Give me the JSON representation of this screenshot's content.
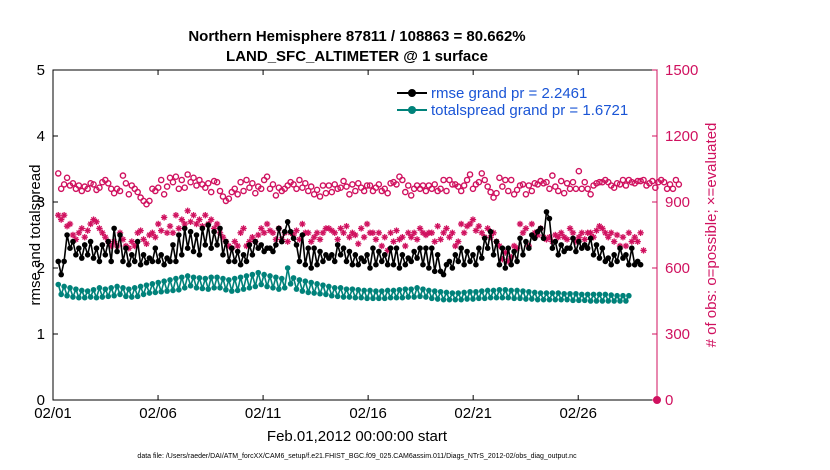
{
  "chart_data": {
    "type": "line",
    "title": "Northern Hemisphere 87811 / 108863 = 80.662%",
    "subtitle": "LAND_SFC_ALTIMETER @ 1 surface",
    "xlabel": "Feb.01,2012 00:00:00 start",
    "ylabel_left": "rmse and totalspread",
    "ylabel_right": "# of obs: o=possible; ×=evaluated",
    "footnote": "data file: /Users/raeder/DAI/ATM_forcXX/CAM6_setup/f.e21.FHIST_BGC.f09_025.CAM6assim.011/Diags_NTrS_2012-02/obs_diag_output.nc",
    "xlim": [
      0,
      28.75
    ],
    "ylim_left": [
      0,
      5
    ],
    "ylim_right": [
      0,
      1500
    ],
    "x_ticks": [
      0,
      5,
      10,
      15,
      20,
      25
    ],
    "x_tick_labels": [
      "02/01",
      "02/06",
      "02/11",
      "02/16",
      "02/21",
      "02/26"
    ],
    "y_left_ticks": [
      "0",
      "1",
      "2",
      "3",
      "4",
      "5"
    ],
    "y_right_ticks": [
      "0",
      "300",
      "600",
      "900",
      "1200",
      "1500"
    ],
    "grid": false,
    "legend_position": "top-right",
    "colors": {
      "rmse": "#000000",
      "totalspread": "#00827a",
      "obs": "#d0115f",
      "legend_text": "#1a55d6"
    },
    "series": [
      {
        "name": "rmse grand pr = 2.2461",
        "axis": "left",
        "values": [
          2.1,
          1.9,
          2.1,
          2.5,
          2.3,
          2.4,
          2.2,
          2.3,
          2.15,
          2.35,
          2.2,
          2.4,
          2.15,
          2.3,
          2.1,
          2.35,
          2.2,
          2.4,
          2.1,
          2.6,
          2.25,
          2.5,
          2.1,
          2.3,
          2.05,
          2.2,
          2.1,
          2.4,
          2.05,
          2.2,
          2.08,
          2.15,
          2.1,
          2.3,
          2.1,
          2.2,
          2.05,
          2.15,
          2.1,
          2.35,
          2.1,
          2.5,
          2.2,
          2.6,
          2.3,
          2.55,
          2.25,
          2.5,
          2.2,
          2.6,
          2.35,
          2.65,
          2.3,
          2.55,
          2.35,
          2.6,
          2.2,
          2.4,
          2.1,
          2.3,
          2.1,
          2.25,
          2.05,
          2.2,
          2.1,
          2.35,
          2.2,
          2.4,
          2.3,
          2.35,
          2.25,
          2.3,
          2.3,
          2.25,
          2.35,
          2.6,
          2.4,
          2.55,
          2.7,
          2.55,
          2.45,
          2.35,
          2.1,
          2.5,
          2.05,
          2.3,
          2.0,
          2.3,
          2.05,
          2.25,
          2.1,
          2.2,
          2.15,
          2.2,
          2.1,
          2.35,
          2.2,
          2.3,
          2.1,
          2.25,
          2.05,
          2.2,
          2.05,
          2.15,
          2.1,
          2.2,
          2.0,
          2.3,
          2.05,
          2.25,
          2.1,
          2.2,
          2.05,
          2.3,
          2.05,
          2.3,
          2.0,
          2.2,
          2.05,
          2.15,
          2.1,
          2.25,
          2.15,
          2.3,
          2.05,
          2.3,
          2.0,
          2.3,
          1.95,
          2.2,
          1.95,
          1.9,
          2.05,
          2.1,
          2.0,
          2.2,
          2.1,
          2.3,
          2.05,
          2.25,
          2.1,
          2.2,
          2.05,
          2.3,
          2.15,
          2.45,
          2.3,
          2.55,
          2.2,
          2.4,
          2.05,
          2.3,
          2.0,
          2.3,
          2.05,
          2.25,
          2.1,
          2.45,
          2.2,
          2.4,
          2.3,
          2.5,
          2.45,
          2.55,
          2.6,
          2.45,
          2.85,
          2.75,
          2.3,
          2.4,
          2.2,
          2.35,
          2.25,
          2.3,
          2.3,
          2.45,
          2.25,
          2.4,
          2.3,
          2.35,
          2.3,
          2.45,
          2.2,
          2.35,
          2.15,
          2.3,
          2.1,
          2.15,
          2.05,
          2.2,
          2.1,
          2.3,
          2.15,
          2.2,
          2.05,
          2.3,
          2.05,
          2.1,
          2.05
        ]
      },
      {
        "name": "totalspread grand pr = 1.6721",
        "axis": "left",
        "values": [
          1.75,
          1.6,
          1.72,
          1.58,
          1.7,
          1.56,
          1.68,
          1.55,
          1.66,
          1.55,
          1.65,
          1.56,
          1.67,
          1.55,
          1.7,
          1.56,
          1.68,
          1.57,
          1.7,
          1.58,
          1.72,
          1.6,
          1.7,
          1.57,
          1.68,
          1.56,
          1.7,
          1.57,
          1.72,
          1.6,
          1.74,
          1.62,
          1.76,
          1.63,
          1.78,
          1.64,
          1.8,
          1.65,
          1.82,
          1.66,
          1.84,
          1.67,
          1.86,
          1.7,
          1.88,
          1.73,
          1.86,
          1.7,
          1.85,
          1.69,
          1.84,
          1.68,
          1.86,
          1.7,
          1.86,
          1.7,
          1.84,
          1.67,
          1.82,
          1.65,
          1.84,
          1.66,
          1.86,
          1.68,
          1.88,
          1.7,
          1.9,
          1.72,
          1.93,
          1.75,
          1.9,
          1.72,
          1.88,
          1.7,
          1.86,
          1.68,
          1.84,
          1.7,
          2.0,
          1.76,
          1.85,
          1.68,
          1.82,
          1.65,
          1.8,
          1.63,
          1.78,
          1.62,
          1.76,
          1.61,
          1.74,
          1.6,
          1.72,
          1.58,
          1.7,
          1.57,
          1.7,
          1.56,
          1.68,
          1.56,
          1.68,
          1.55,
          1.67,
          1.55,
          1.66,
          1.54,
          1.66,
          1.54,
          1.65,
          1.54,
          1.65,
          1.54,
          1.66,
          1.55,
          1.66,
          1.55,
          1.67,
          1.55,
          1.68,
          1.56,
          1.68,
          1.56,
          1.7,
          1.57,
          1.68,
          1.56,
          1.66,
          1.54,
          1.65,
          1.53,
          1.64,
          1.52,
          1.63,
          1.52,
          1.62,
          1.52,
          1.62,
          1.52,
          1.63,
          1.53,
          1.64,
          1.53,
          1.64,
          1.54,
          1.65,
          1.54,
          1.66,
          1.55,
          1.66,
          1.55,
          1.67,
          1.55,
          1.67,
          1.55,
          1.66,
          1.54,
          1.66,
          1.54,
          1.65,
          1.53,
          1.64,
          1.53,
          1.63,
          1.52,
          1.62,
          1.52,
          1.62,
          1.52,
          1.62,
          1.52,
          1.62,
          1.52,
          1.61,
          1.52,
          1.61,
          1.51,
          1.61,
          1.51,
          1.6,
          1.51,
          1.6,
          1.5,
          1.6,
          1.5,
          1.6,
          1.5,
          1.6,
          1.5,
          1.59,
          1.5,
          1.58,
          1.5,
          1.58,
          1.5,
          1.58
        ]
      },
      {
        "name": "# obs possible",
        "axis": "right",
        "marker": "o",
        "values": [
          1030,
          960,
          980,
          1010,
          975,
          985,
          960,
          975,
          950,
          970,
          960,
          985,
          980,
          955,
          965,
          990,
          1000,
          985,
          960,
          940,
          960,
          950,
          1020,
          985,
          935,
          975,
          960,
          945,
          920,
          905,
          890,
          905,
          960,
          950,
          965,
          1000,
          935,
          970,
          1010,
          990,
          1015,
          960,
          1000,
          965,
          1025,
          990,
          1010,
          975,
          1000,
          980,
          965,
          985,
          945,
          995,
          990,
          950,
          925,
          905,
          915,
          945,
          960,
          935,
          990,
          950,
          1000,
          965,
          985,
          940,
          970,
          960,
          1000,
          1015,
          960,
          980,
          930,
          965,
          950,
          960,
          975,
          990,
          980,
          960,
          1000,
          965,
          985,
          950,
          970,
          935,
          955,
          925,
          975,
          940,
          975,
          945,
          980,
          960,
          965,
          995,
          970,
          935,
          980,
          950,
          985,
          965,
          950,
          975,
          975,
          950,
          965,
          980,
          950,
          960,
          940,
          985,
          990,
          980,
          1015,
          1000,
          945,
          975,
          930,
          960,
          975,
          960,
          975,
          950,
          975,
          960,
          980,
          950,
          960,
          1000,
          950,
          1000,
          980,
          980,
          970,
          950,
          975,
          1000,
          1025,
          960,
          980,
          990,
          1030,
          1000,
          970,
          945,
          920,
          940,
          1010,
          970,
          1000,
          950,
          1000,
          935,
          955,
          975,
          980,
          935,
          975,
          950,
          985,
          980,
          995,
          985,
          990,
          960,
          1020,
          970,
          950,
          995,
          940,
          985,
          960,
          990,
          960,
          1040,
          960,
          990,
          960,
          935,
          975,
          985,
          990,
          990,
          1000,
          990,
          975,
          965,
          985,
          980,
          1000,
          975,
          1000,
          990,
          985,
          995,
          995,
          1000,
          975,
          985,
          995,
          965,
          990,
          1000,
          990,
          960,
          980,
          960,
          1000,
          980
        ]
      },
      {
        "name": "# obs evaluated",
        "axis": "right",
        "marker": "*",
        "values": [
          840,
          820,
          840,
          790,
          800,
          750,
          730,
          760,
          780,
          740,
          770,
          800,
          820,
          810,
          780,
          760,
          740,
          720,
          700,
          720,
          700,
          760,
          730,
          700,
          690,
          720,
          700,
          760,
          770,
          730,
          710,
          750,
          760,
          740,
          800,
          770,
          830,
          760,
          790,
          760,
          840,
          780,
          820,
          800,
          860,
          810,
          840,
          800,
          820,
          790,
          840,
          800,
          820,
          780,
          800,
          760,
          740,
          720,
          700,
          690,
          720,
          700,
          760,
          780,
          700,
          720,
          740,
          720,
          750,
          780,
          760,
          800,
          770,
          760,
          730,
          780,
          730,
          760,
          720,
          760,
          750,
          770,
          730,
          800,
          760,
          760,
          720,
          740,
          760,
          730,
          760,
          780,
          780,
          770,
          760,
          730,
          780,
          760,
          790,
          740,
          760,
          750,
          710,
          780,
          740,
          800,
          760,
          760,
          730,
          760,
          700,
          740,
          680,
          760,
          720,
          770,
          730,
          740,
          700,
          760,
          740,
          760,
          730,
          780,
          760,
          750,
          760,
          760,
          720,
          790,
          730,
          760,
          780,
          740,
          760,
          700,
          720,
          800,
          760,
          790,
          800,
          820,
          770,
          790,
          760,
          740,
          780,
          740,
          760,
          720,
          700,
          640,
          670,
          630,
          650,
          700,
          690,
          800,
          760,
          780,
          700,
          800,
          760,
          750,
          780,
          740,
          730,
          740,
          720,
          750,
          740,
          760,
          740,
          730,
          780,
          760,
          720,
          740,
          760,
          730,
          760,
          760,
          740,
          770,
          790,
          780,
          760,
          740,
          760,
          720,
          750,
          700,
          740,
          700,
          760,
          720,
          740,
          720,
          760,
          680
        ]
      }
    ]
  }
}
